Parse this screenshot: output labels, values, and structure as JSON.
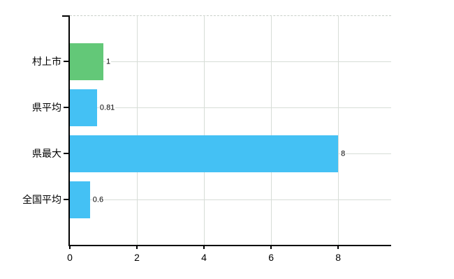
{
  "chart_data": {
    "type": "bar",
    "orientation": "horizontal",
    "title": "",
    "xlabel": "",
    "ylabel": "",
    "categories": [
      "村上市",
      "県平均",
      "県最大",
      "全国平均"
    ],
    "values": [
      1,
      0.81,
      8,
      0.6
    ],
    "value_labels": [
      "1",
      "0.81",
      "8",
      "0.6"
    ],
    "bar_colors": [
      "#63c878",
      "#44c1f4",
      "#44c1f4",
      "#44c1f4"
    ],
    "x_ticks": [
      0,
      2,
      4,
      6,
      8
    ],
    "x_tick_labels": [
      "0",
      "2",
      "4",
      "6",
      "8"
    ],
    "xlim": [
      0,
      9.58
    ],
    "grid": true,
    "legend": false,
    "colors": {
      "axis": "#000000",
      "gridline": "#d7ddd7",
      "top_border": "#c8cfc8",
      "background": "#ffffff",
      "text": "#000000"
    }
  }
}
